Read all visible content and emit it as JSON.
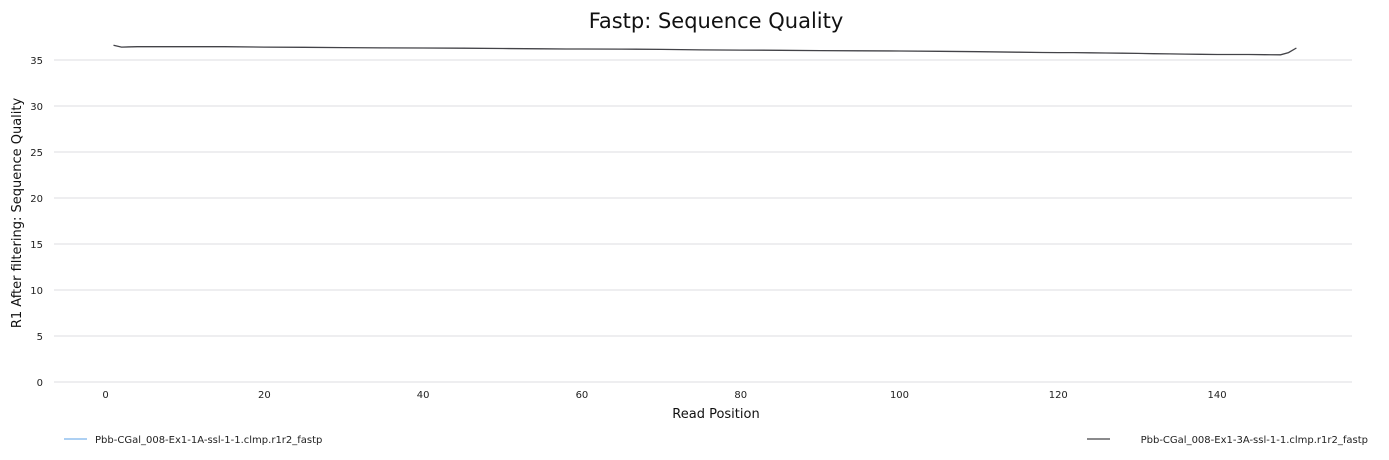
{
  "chart_data": {
    "type": "line",
    "title": "Fastp: Sequence Quality",
    "xlabel": "Read Position",
    "ylabel": "R1 After filtering: Sequence Quality",
    "xlim": [
      -6.5,
      157
    ],
    "ylim": [
      0,
      37.5
    ],
    "xticks": [
      0,
      20,
      40,
      60,
      80,
      100,
      120,
      140
    ],
    "yticks": [
      0,
      5,
      10,
      15,
      20,
      25,
      30,
      35
    ],
    "grid": true,
    "legend_position": "bottom",
    "series": [
      {
        "name": "Pbb-CGal_008-Ex1-1A-ssl-1-1.clmp.r1r2_fastp",
        "color": "#7cb5ec",
        "x": [],
        "y": []
      },
      {
        "name": "Pbb-CGal_008-Ex1-3A-ssl-1-1.clmp.r1r2_fastp",
        "color": "#434348",
        "x": [
          1,
          2,
          4,
          6,
          8,
          10,
          12,
          15,
          20,
          25,
          30,
          35,
          40,
          45,
          50,
          55,
          58,
          60,
          65,
          70,
          75,
          80,
          85,
          90,
          95,
          100,
          105,
          110,
          115,
          118,
          120,
          122,
          124,
          126,
          128,
          130,
          132,
          134,
          136,
          138,
          140,
          142,
          144,
          146,
          148,
          149,
          150
        ],
        "y": [
          36.6,
          36.4,
          36.45,
          36.45,
          36.45,
          36.45,
          36.45,
          36.45,
          36.4,
          36.38,
          36.35,
          36.32,
          36.3,
          36.28,
          36.25,
          36.22,
          36.2,
          36.2,
          36.18,
          36.15,
          36.1,
          36.08,
          36.05,
          36.02,
          36.0,
          35.98,
          35.95,
          35.9,
          35.85,
          35.82,
          35.8,
          35.8,
          35.78,
          35.76,
          35.74,
          35.72,
          35.68,
          35.66,
          35.64,
          35.62,
          35.6,
          35.6,
          35.6,
          35.58,
          35.56,
          35.8,
          36.3
        ]
      }
    ]
  }
}
